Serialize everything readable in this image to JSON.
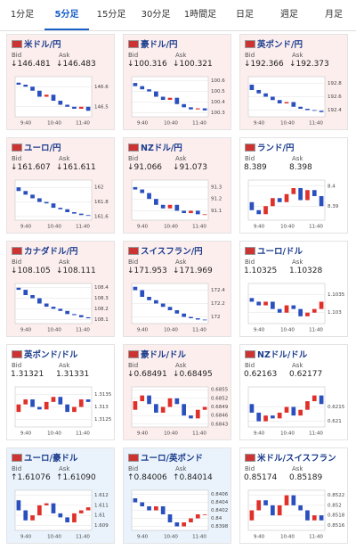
{
  "tabs": [
    "1分足",
    "5分足",
    "15分足",
    "30分足",
    "1時間足",
    "日足",
    "週足",
    "月足"
  ],
  "active_tab": 1,
  "up_color": "#e0302a",
  "down_color": "#2a4fbf",
  "trend_colors": {
    "down": "#fdeeee",
    "up": "#eaf3fc",
    "flat": "#ffffff"
  },
  "tiles": [
    {
      "name": "米ドル/円",
      "trend": "down",
      "bid_label": "Bid",
      "ask_label": "Ask",
      "bid": "↓146.481",
      "ask": "↓146.483",
      "chart": {
        "ylim": [
          146.45,
          146.65
        ],
        "yticks": [
          146.5,
          146.6
        ],
        "x_labels": [
          "9:40",
          "10:40",
          "11:40"
        ],
        "values": [
          146.62,
          146.61,
          146.6,
          146.58,
          146.55,
          146.56,
          146.53,
          146.51,
          146.5,
          146.49,
          146.5,
          146.48
        ]
      }
    },
    {
      "name": "豪ドル/円",
      "trend": "down",
      "bid_label": "Bid",
      "ask_label": "Ask",
      "bid": "↓100.316",
      "ask": "↓100.321",
      "chart": {
        "ylim": [
          100.26,
          100.64
        ],
        "yticks": [
          100.3,
          100.4,
          100.5,
          100.6
        ],
        "x_labels": [
          "9:40",
          "10:40",
          "11:40"
        ],
        "values": [
          100.58,
          100.55,
          100.52,
          100.5,
          100.45,
          100.42,
          100.44,
          100.38,
          100.35,
          100.33,
          100.34,
          100.32
        ]
      }
    },
    {
      "name": "英ポンド/円",
      "trend": "down",
      "bid_label": "Bid",
      "ask_label": "Ask",
      "bid": "↓192.366",
      "ask": "↓192.373",
      "chart": {
        "ylim": [
          192.3,
          192.9
        ],
        "yticks": [
          192.4,
          192.6,
          192.8
        ],
        "x_labels": [
          "9:40",
          "10:40",
          "11:40"
        ],
        "values": [
          192.78,
          192.7,
          192.65,
          192.6,
          192.55,
          192.5,
          192.52,
          192.45,
          192.42,
          192.4,
          192.39,
          192.37
        ]
      }
    },
    {
      "name": "ユーロ/円",
      "trend": "down",
      "bid_label": "Bid",
      "ask_label": "Ask",
      "bid": "↓161.607",
      "ask": "↓161.611",
      "chart": {
        "ylim": [
          161.55,
          162.1
        ],
        "yticks": [
          161.6,
          161.8,
          162
        ],
        "x_labels": [
          "9:40",
          "10:40",
          "11:40"
        ],
        "values": [
          162.0,
          161.95,
          161.9,
          161.85,
          161.8,
          161.78,
          161.72,
          161.7,
          161.66,
          161.64,
          161.62,
          161.61
        ]
      }
    },
    {
      "name": "NZドル/円",
      "trend": "down",
      "bid_label": "Bid",
      "ask_label": "Ask",
      "bid": "↓91.066",
      "ask": "↓91.073",
      "chart": {
        "ylim": [
          91.02,
          91.36
        ],
        "yticks": [
          91.1,
          91.2,
          91.3
        ],
        "x_labels": [
          "9:40",
          "10:40",
          "11:40"
        ],
        "values": [
          91.3,
          91.28,
          91.25,
          91.2,
          91.15,
          91.12,
          91.15,
          91.1,
          91.08,
          91.1,
          91.07,
          91.07
        ]
      }
    },
    {
      "name": "ランド/円",
      "trend": "flat",
      "bid_label": "Bid",
      "ask_label": "Ask",
      "bid": "8.389",
      "ask": "8.398",
      "chart": {
        "ylim": [
          8.383,
          8.403
        ],
        "yticks": [
          8.39,
          8.4
        ],
        "x_labels": [
          "9:40",
          "10:40",
          "11:40"
        ],
        "values": [
          8.392,
          8.388,
          8.386,
          8.39,
          8.394,
          8.392,
          8.396,
          8.399,
          8.393,
          8.398,
          8.395,
          8.39
        ]
      }
    },
    {
      "name": "カナダドル/円",
      "trend": "down",
      "bid_label": "Bid",
      "ask_label": "Ask",
      "bid": "↓108.105",
      "ask": "↓108.111",
      "chart": {
        "ylim": [
          108.06,
          108.44
        ],
        "yticks": [
          108.1,
          108.2,
          108.3,
          108.4
        ],
        "x_labels": [
          "9:40",
          "10:40",
          "11:40"
        ],
        "values": [
          108.4,
          108.38,
          108.33,
          108.3,
          108.25,
          108.22,
          108.2,
          108.18,
          108.15,
          108.14,
          108.12,
          108.11
        ]
      }
    },
    {
      "name": "スイスフラン/円",
      "trend": "down",
      "bid_label": "Bid",
      "ask_label": "Ask",
      "bid": "↓171.953",
      "ask": "↓171.969",
      "chart": {
        "ylim": [
          171.9,
          172.5
        ],
        "yticks": [
          172,
          172.2,
          172.4
        ],
        "x_labels": [
          "9:40",
          "10:40",
          "11:40"
        ],
        "values": [
          172.45,
          172.4,
          172.3,
          172.25,
          172.2,
          172.15,
          172.1,
          172.05,
          172.0,
          171.98,
          171.96,
          171.95
        ]
      }
    },
    {
      "name": "ユーロ/ドル",
      "trend": "flat",
      "bid_label": "Bid",
      "ask_label": "Ask",
      "bid": "1.10325",
      "ask": "1.10328",
      "chart": {
        "ylim": [
          1.1027,
          1.1038
        ],
        "yticks": [
          1.103,
          1.1035
        ],
        "x_labels": [
          "9:40",
          "10:40",
          "11:40"
        ],
        "values": [
          1.1034,
          1.1033,
          1.1032,
          1.1033,
          1.1031,
          1.103,
          1.1032,
          1.1031,
          1.1029,
          1.103,
          1.1031,
          1.1033
        ]
      }
    },
    {
      "name": "英ポンド/ドル",
      "trend": "flat",
      "bid_label": "Bid",
      "ask_label": "Ask",
      "bid": "1.31321",
      "ask": "1.31331",
      "chart": {
        "ylim": [
          1.3122,
          1.3138
        ],
        "yticks": [
          1.3125,
          1.313,
          1.3135
        ],
        "x_labels": [
          "9:40",
          "10:40",
          "11:40"
        ],
        "values": [
          1.3128,
          1.3131,
          1.3133,
          1.313,
          1.3129,
          1.3132,
          1.3134,
          1.3131,
          1.3128,
          1.313,
          1.3133,
          1.3132
        ]
      }
    },
    {
      "name": "豪ドル/ドル",
      "trend": "down",
      "bid_label": "Bid",
      "ask_label": "Ask",
      "bid": "↓0.68491",
      "ask": "↓0.68495",
      "chart": {
        "ylim": [
          0.6842,
          0.6856
        ],
        "yticks": [
          0.6843,
          0.6846,
          0.6849,
          0.6852,
          0.6855
        ],
        "x_labels": [
          "9:40",
          "10:40",
          "11:40"
        ],
        "values": [
          0.6848,
          0.6851,
          0.6853,
          0.685,
          0.6847,
          0.6849,
          0.6852,
          0.685,
          0.6846,
          0.6845,
          0.6848,
          0.6849
        ]
      }
    },
    {
      "name": "NZドル/ドル",
      "trend": "flat",
      "bid_label": "Bid",
      "ask_label": "Ask",
      "bid": "0.62163",
      "ask": "0.62177",
      "chart": {
        "ylim": [
          0.6208,
          0.6222
        ],
        "yticks": [
          0.621,
          0.6215
        ],
        "x_labels": [
          "9:40",
          "10:40",
          "11:40"
        ],
        "values": [
          0.6216,
          0.6213,
          0.621,
          0.6212,
          0.6211,
          0.6213,
          0.6215,
          0.6212,
          0.6214,
          0.6217,
          0.6219,
          0.6216
        ]
      }
    },
    {
      "name": "ユーロ/豪ドル",
      "trend": "up",
      "bid_label": "Bid",
      "ask_label": "Ask",
      "bid": "↑1.61076",
      "ask": "↑1.61090",
      "chart": {
        "ylim": [
          1.6085,
          1.6125
        ],
        "yticks": [
          1.609,
          1.61,
          1.611,
          1.612
        ],
        "x_labels": [
          "9:40",
          "10:40",
          "11:40"
        ],
        "values": [
          1.6115,
          1.6105,
          1.6095,
          1.61,
          1.611,
          1.6112,
          1.6102,
          1.6098,
          1.6093,
          1.6102,
          1.6105,
          1.6108
        ]
      }
    },
    {
      "name": "ユーロ/英ポンド",
      "trend": "up",
      "bid_label": "Bid",
      "ask_label": "Ask",
      "bid": "↑0.84006",
      "ask": "↑0.84014",
      "chart": {
        "ylim": [
          0.8397,
          0.8407
        ],
        "yticks": [
          0.8398,
          0.84,
          0.8402,
          0.8404,
          0.8406
        ],
        "x_labels": [
          "9:40",
          "10:40",
          "11:40"
        ],
        "values": [
          0.8405,
          0.8404,
          0.8403,
          0.8402,
          0.8403,
          0.8401,
          0.8399,
          0.8398,
          0.8399,
          0.84,
          0.8401,
          0.8401
        ]
      }
    },
    {
      "name": "米ドル/スイスフラン",
      "trend": "flat",
      "bid_label": "Bid",
      "ask_label": "Ask",
      "bid": "0.85174",
      "ask": "0.85189",
      "chart": {
        "ylim": [
          0.8515,
          0.8523
        ],
        "yticks": [
          0.8516,
          0.8518,
          0.852,
          0.8522
        ],
        "x_labels": [
          "9:40",
          "10:40",
          "11:40"
        ],
        "values": [
          0.8517,
          0.8519,
          0.8521,
          0.852,
          0.8518,
          0.852,
          0.8522,
          0.852,
          0.8519,
          0.8517,
          0.8518,
          0.8517
        ]
      }
    }
  ]
}
